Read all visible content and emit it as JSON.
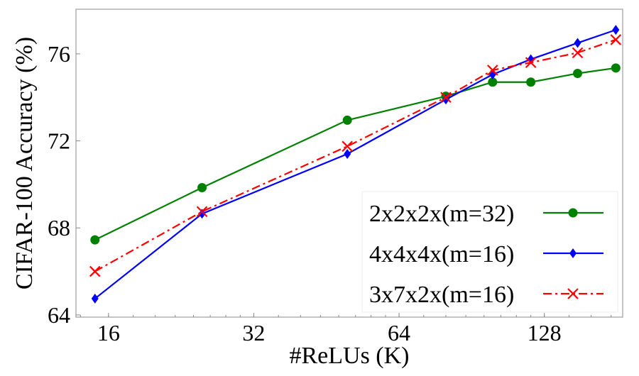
{
  "chart_data": {
    "type": "line",
    "title": "",
    "xlabel": "#ReLUs (K)",
    "ylabel": "CIFAR-100 Accuracy (%)",
    "x_scale": "log2",
    "xlim": [
      13.7,
      186
    ],
    "ylim": [
      63.9,
      78.05
    ],
    "x_ticks": [
      16,
      32,
      64,
      128
    ],
    "y_ticks": [
      64,
      68,
      72,
      76
    ],
    "grid": false,
    "legend_position": "bottom-right",
    "x": [
      15,
      25,
      50,
      80,
      100,
      120,
      150,
      180
    ],
    "series": [
      {
        "name": "2x2x2x(m=32)",
        "color": "#008000",
        "marker": "circle",
        "linestyle": "solid",
        "values": [
          67.45,
          69.85,
          72.95,
          74.05,
          74.7,
          74.7,
          75.1,
          75.35
        ]
      },
      {
        "name": "4x4x4x(m=16)",
        "color": "#0000ff",
        "marker": "diamond",
        "linestyle": "solid",
        "values": [
          64.75,
          68.65,
          71.4,
          73.9,
          75.05,
          75.75,
          76.5,
          77.1
        ]
      },
      {
        "name": "3x7x2x(m=16)",
        "color": "#ff0000",
        "marker": "x",
        "linestyle": "dashdot",
        "values": [
          66.0,
          68.75,
          71.75,
          74.0,
          75.25,
          75.6,
          76.05,
          76.65
        ]
      }
    ]
  }
}
